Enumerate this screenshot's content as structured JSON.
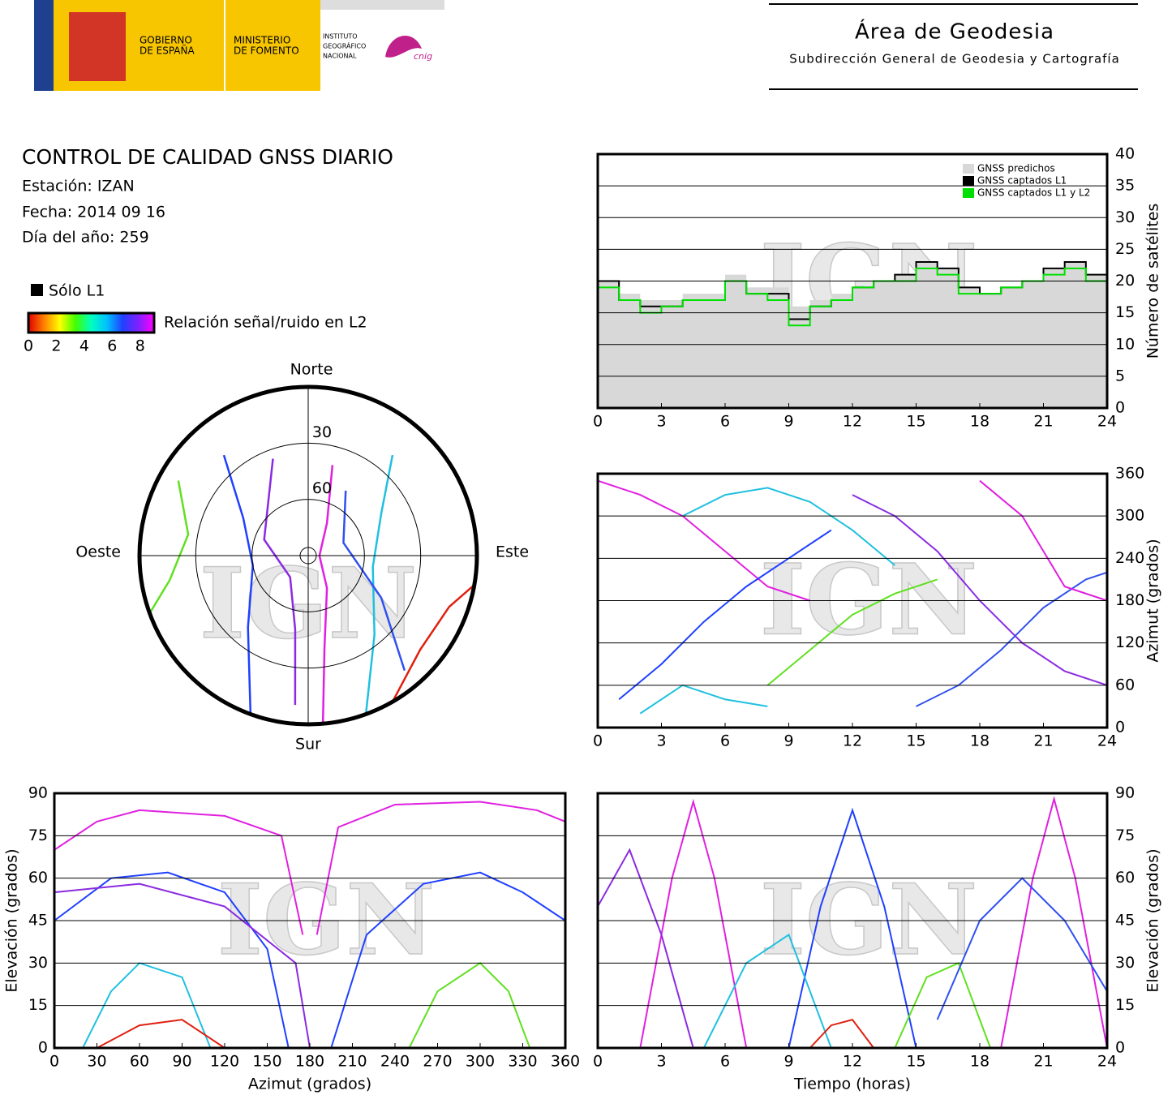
{
  "header": {
    "logo_gov": [
      "GOBIERNO",
      "DE ESPAÑA"
    ],
    "logo_min": [
      "MINISTERIO",
      "DE FOMENTO"
    ],
    "logo_ign": [
      "INSTITUTO",
      "GEOGRÁFICO",
      "NACIONAL"
    ],
    "logo_cnig": "cnig",
    "title": "Área de Geodesia",
    "subtitle": "Subdirección General de Geodesia y Cartografía"
  },
  "info": {
    "title": "CONTROL DE CALIDAD GNSS DIARIO",
    "station": "Estación: IZAN",
    "date": "Fecha: 2014 09 16",
    "doy": "Día del año: 259"
  },
  "legend": {
    "solo_l1": "Sólo L1",
    "solo_l1_color": "#000000",
    "colorbar_label": "Relación señal/ruido en L2",
    "clim": [
      0,
      9
    ],
    "ticks": [
      0,
      2,
      4,
      6,
      8
    ],
    "colors": [
      "#e00000",
      "#ff8000",
      "#ffff00",
      "#40ff00",
      "#00ffc0",
      "#00c0ff",
      "#2040ff",
      "#8020ff",
      "#ff00ff"
    ]
  },
  "watermark": "IGN",
  "chart_data": [
    {
      "type": "line",
      "ylabel": "Número de satélites",
      "xlim": [
        0,
        24
      ],
      "ylim": [
        0,
        40
      ],
      "xticks": [
        0,
        3,
        6,
        9,
        12,
        15,
        18,
        21,
        24
      ],
      "yticks": [
        0,
        5,
        10,
        15,
        20,
        25,
        30,
        35,
        40
      ],
      "grid": true,
      "step": true,
      "legend": "upper right",
      "x": [
        0,
        1,
        2,
        3,
        4,
        5,
        6,
        7,
        8,
        9,
        10,
        11,
        12,
        13,
        14,
        15,
        16,
        17,
        18,
        19,
        20,
        21,
        22,
        23,
        24
      ],
      "series": [
        {
          "name": "GNSS predichos",
          "color": "#d8d8d8",
          "style": "area",
          "values": [
            20,
            18,
            17,
            17,
            18,
            18,
            21,
            19,
            19,
            16,
            17,
            18,
            19,
            20,
            21,
            23,
            22,
            19,
            18,
            19,
            20,
            22,
            23,
            21,
            19
          ]
        },
        {
          "name": "GNSS captados L1",
          "color": "#000000",
          "values": [
            20,
            17,
            16,
            16,
            17,
            17,
            20,
            18,
            18,
            14,
            16,
            17,
            19,
            20,
            21,
            23,
            22,
            19,
            18,
            19,
            20,
            22,
            23,
            21,
            19
          ]
        },
        {
          "name": "GNSS captados L1 y L2",
          "color": "#00e000",
          "values": [
            19,
            17,
            15,
            16,
            17,
            17,
            20,
            18,
            17,
            13,
            16,
            17,
            19,
            20,
            20,
            22,
            21,
            18,
            18,
            19,
            20,
            21,
            22,
            20,
            18
          ]
        }
      ]
    },
    {
      "type": "polar",
      "rticks": [
        30,
        60
      ],
      "rlim": [
        0,
        90
      ],
      "directions": [
        "Norte",
        "Este",
        "Sur",
        "Oeste"
      ],
      "series": [
        {
          "color": "#e020e0",
          "x": [
            175,
            170,
            150,
            90,
            30,
            15
          ],
          "values": [
            0,
            40,
            70,
            84,
            70,
            40
          ]
        },
        {
          "color": "#2040ff",
          "x": [
            200,
            220,
            260,
            300,
            320
          ],
          "values": [
            0,
            40,
            60,
            50,
            20
          ]
        },
        {
          "color": "#20c0e0",
          "x": [
            160,
            140,
            100,
            60,
            40
          ],
          "values": [
            0,
            35,
            55,
            45,
            20
          ]
        },
        {
          "color": "#60e020",
          "x": [
            250,
            260,
            280,
            300
          ],
          "values": [
            0,
            15,
            25,
            10
          ]
        },
        {
          "color": "#8a2be2",
          "x": [
            185,
            190,
            220,
            290,
            340
          ],
          "values": [
            10,
            50,
            75,
            65,
            35
          ]
        },
        {
          "color": "#e02010",
          "x": [
            100,
            110,
            130,
            150
          ],
          "values": [
            0,
            10,
            12,
            0
          ]
        },
        {
          "color": "#3050f0",
          "x": [
            140,
            120,
            70,
            30
          ],
          "values": [
            10,
            45,
            70,
            50
          ]
        }
      ]
    },
    {
      "type": "line",
      "ylabel": "Azimut (grados)",
      "xlim": [
        0,
        24
      ],
      "ylim": [
        0,
        360
      ],
      "xticks": [
        0,
        3,
        6,
        9,
        12,
        15,
        18,
        21,
        24
      ],
      "yticks": [
        0,
        60,
        120,
        180,
        240,
        300,
        360
      ],
      "grid": true,
      "series": [
        {
          "color": "#e020e0",
          "x": [
            0,
            2,
            4,
            6,
            8,
            10
          ],
          "values": [
            350,
            330,
            300,
            250,
            200,
            180
          ]
        },
        {
          "color": "#2040ff",
          "x": [
            1,
            3,
            5,
            7,
            9,
            11
          ],
          "values": [
            40,
            90,
            150,
            200,
            240,
            280
          ]
        },
        {
          "color": "#20c0e0",
          "x": [
            4,
            6,
            8,
            10,
            12,
            14
          ],
          "values": [
            300,
            330,
            340,
            320,
            280,
            230
          ]
        },
        {
          "color": "#60e020",
          "x": [
            8,
            10,
            12,
            14,
            16
          ],
          "values": [
            60,
            110,
            160,
            190,
            210
          ]
        },
        {
          "color": "#8a2be2",
          "x": [
            12,
            14,
            16,
            18,
            20,
            22,
            24
          ],
          "values": [
            330,
            300,
            250,
            180,
            120,
            80,
            60
          ]
        },
        {
          "color": "#3050f0",
          "x": [
            15,
            17,
            19,
            21,
            23,
            24
          ],
          "values": [
            30,
            60,
            110,
            170,
            210,
            220
          ]
        },
        {
          "color": "#e020e0",
          "x": [
            18,
            20,
            22,
            24
          ],
          "values": [
            350,
            300,
            200,
            180
          ]
        },
        {
          "color": "#20c0e0",
          "x": [
            2,
            4,
            6,
            8
          ],
          "values": [
            20,
            60,
            40,
            30
          ]
        }
      ]
    },
    {
      "type": "line",
      "xlabel": "Azimut (grados)",
      "ylabel": "Elevación (grados)",
      "xlim": [
        0,
        360
      ],
      "ylim": [
        0,
        90
      ],
      "xticks": [
        0,
        30,
        60,
        90,
        120,
        150,
        180,
        210,
        240,
        270,
        300,
        330,
        360
      ],
      "yticks": [
        0,
        15,
        30,
        45,
        60,
        75,
        90
      ],
      "grid": true,
      "series": [
        {
          "color": "#e020e0",
          "x": [
            0,
            30,
            60,
            120,
            160,
            175
          ],
          "values": [
            70,
            80,
            84,
            82,
            75,
            40
          ]
        },
        {
          "color": "#e020e0",
          "x": [
            185,
            200,
            240,
            300,
            340,
            360
          ],
          "values": [
            40,
            78,
            86,
            87,
            84,
            80
          ]
        },
        {
          "color": "#2040ff",
          "x": [
            0,
            40,
            80,
            120,
            150,
            165
          ],
          "values": [
            45,
            60,
            62,
            55,
            35,
            0
          ]
        },
        {
          "color": "#2040ff",
          "x": [
            195,
            220,
            260,
            300,
            330,
            360
          ],
          "values": [
            0,
            40,
            58,
            62,
            55,
            45
          ]
        },
        {
          "color": "#20c0e0",
          "x": [
            20,
            40,
            60,
            90,
            110
          ],
          "values": [
            0,
            20,
            30,
            25,
            0
          ]
        },
        {
          "color": "#60e020",
          "x": [
            250,
            270,
            300,
            320,
            335
          ],
          "values": [
            0,
            20,
            30,
            20,
            0
          ]
        },
        {
          "color": "#8a2be2",
          "x": [
            0,
            60,
            120,
            170,
            180
          ],
          "values": [
            55,
            58,
            50,
            30,
            0
          ]
        },
        {
          "color": "#e02010",
          "x": [
            30,
            60,
            90,
            120
          ],
          "values": [
            0,
            8,
            10,
            0
          ]
        }
      ]
    },
    {
      "type": "line",
      "xlabel": "Tiempo (horas)",
      "ylabel": "Elevación (grados)",
      "xlim": [
        0,
        24
      ],
      "ylim": [
        0,
        90
      ],
      "xticks": [
        0,
        3,
        6,
        9,
        12,
        15,
        18,
        21,
        24
      ],
      "yticks": [
        0,
        15,
        30,
        45,
        60,
        75,
        90
      ],
      "grid": true,
      "series": [
        {
          "color": "#e020e0",
          "x": [
            2,
            3.5,
            4.5,
            5.5,
            7
          ],
          "values": [
            0,
            60,
            87,
            60,
            0
          ]
        },
        {
          "color": "#8a2be2",
          "x": [
            0,
            1.5,
            3,
            4.5
          ],
          "values": [
            50,
            70,
            40,
            0
          ]
        },
        {
          "color": "#2040ff",
          "x": [
            9,
            10.5,
            12,
            13.5,
            15
          ],
          "values": [
            0,
            50,
            84,
            50,
            0
          ]
        },
        {
          "color": "#20c0e0",
          "x": [
            5,
            7,
            9,
            11
          ],
          "values": [
            0,
            30,
            40,
            0
          ]
        },
        {
          "color": "#60e020",
          "x": [
            14,
            15.5,
            17,
            18.5
          ],
          "values": [
            0,
            25,
            30,
            0
          ]
        },
        {
          "color": "#e020e0",
          "x": [
            19,
            20.5,
            21.5,
            22.5,
            24
          ],
          "values": [
            0,
            60,
            88,
            60,
            0
          ]
        },
        {
          "color": "#3050f0",
          "x": [
            16,
            18,
            20,
            22,
            24
          ],
          "values": [
            10,
            45,
            60,
            45,
            20
          ]
        },
        {
          "color": "#e02010",
          "x": [
            10,
            11,
            12,
            13
          ],
          "values": [
            0,
            8,
            10,
            0
          ]
        }
      ]
    }
  ]
}
